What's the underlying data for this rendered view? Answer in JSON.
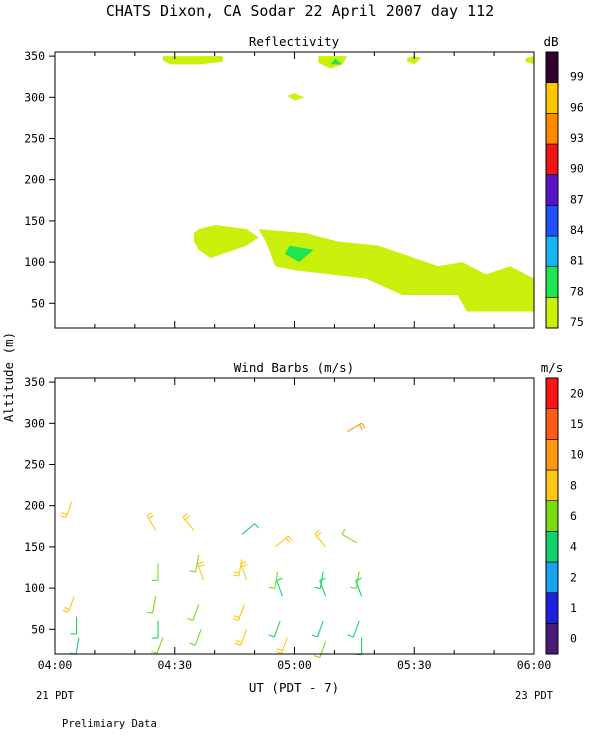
{
  "figure": {
    "title": "CHATS Dixon, CA  Sodar  22 April 2007  day 112",
    "left_date_label": "21 PDT",
    "right_date_label": "23 PDT",
    "footer_note": "Prelimiary Data",
    "colors": {
      "background": "#ffffff",
      "axes": "#000000"
    }
  },
  "chart_data": [
    {
      "type": "heatmap",
      "title": "Reflectivity",
      "colorbar_label": "dB",
      "xlabel": "",
      "ylabel": "",
      "x_ticks": [
        "04:00",
        "04:30",
        "05:00",
        "05:30",
        "06:00"
      ],
      "x_range_hours": [
        4.0,
        6.0
      ],
      "ylim": [
        20,
        355
      ],
      "y_ticks": [
        50,
        100,
        150,
        200,
        250,
        300,
        350
      ],
      "colorbar": {
        "levels": [
          "75",
          "78",
          "81",
          "84",
          "87",
          "90",
          "93",
          "96",
          "99"
        ],
        "colors": [
          "#c8f00a",
          "#1ee650",
          "#14b4f0",
          "#1e50ff",
          "#5a14c8",
          "#f01414",
          "#ff8c00",
          "#ffc800",
          "#32002a"
        ]
      },
      "regions": [
        {
          "level": "75",
          "points": [
            [
              4.45,
              350
            ],
            [
              4.7,
              350
            ],
            [
              4.7,
              343
            ],
            [
              4.6,
              340
            ],
            [
              4.48,
              340
            ],
            [
              4.45,
              345
            ]
          ]
        },
        {
          "level": "75",
          "points": [
            [
              5.1,
              350
            ],
            [
              5.22,
              350
            ],
            [
              5.2,
              340
            ],
            [
              5.15,
              335
            ],
            [
              5.1,
              342
            ]
          ]
        },
        {
          "level": "78",
          "points": [
            [
              5.17,
              347
            ],
            [
              5.2,
              340
            ],
            [
              5.15,
              340
            ]
          ]
        },
        {
          "level": "75",
          "points": [
            [
              5.47,
              348
            ],
            [
              5.5,
              350
            ],
            [
              5.53,
              348
            ],
            [
              5.5,
              340
            ],
            [
              5.47,
              344
            ]
          ]
        },
        {
          "level": "75",
          "points": [
            [
              5.97,
              348
            ],
            [
              6.0,
              350
            ],
            [
              6.03,
              348
            ],
            [
              6.0,
              340
            ],
            [
              5.96,
              344
            ]
          ]
        },
        {
          "level": "75",
          "points": [
            [
              4.97,
              302
            ],
            [
              5.0,
              305
            ],
            [
              5.04,
              300
            ],
            [
              5.0,
              296
            ]
          ]
        },
        {
          "level": "75",
          "points": [
            [
              4.58,
              135
            ],
            [
              4.6,
              140
            ],
            [
              4.67,
              145
            ],
            [
              4.8,
              140
            ],
            [
              4.85,
              130
            ],
            [
              4.8,
              120
            ],
            [
              4.7,
              110
            ],
            [
              4.65,
              105
            ],
            [
              4.6,
              115
            ],
            [
              4.58,
              125
            ]
          ]
        },
        {
          "level": "75",
          "points": [
            [
              4.85,
              140
            ],
            [
              5.05,
              135
            ],
            [
              5.18,
              125
            ],
            [
              5.35,
              120
            ],
            [
              5.5,
              105
            ],
            [
              5.6,
              95
            ],
            [
              5.7,
              100
            ],
            [
              5.8,
              85
            ],
            [
              5.9,
              95
            ],
            [
              6.0,
              80
            ],
            [
              6.0,
              40
            ],
            [
              5.72,
              40
            ],
            [
              5.68,
              60
            ],
            [
              5.45,
              60
            ],
            [
              5.3,
              80
            ],
            [
              5.15,
              85
            ],
            [
              5.0,
              90
            ],
            [
              4.92,
              95
            ],
            [
              4.9,
              110
            ],
            [
              4.88,
              125
            ]
          ]
        },
        {
          "level": "78",
          "points": [
            [
              4.98,
              120
            ],
            [
              5.08,
              115
            ],
            [
              5.02,
              100
            ],
            [
              4.96,
              110
            ]
          ]
        }
      ]
    },
    {
      "type": "scatter",
      "title": "Wind Barbs (m/s)",
      "colorbar_label": "m/s",
      "xlabel": "UT  (PDT - 7)",
      "ylabel": "Altitude (m)",
      "x_ticks": [
        "04:00",
        "04:30",
        "05:00",
        "05:30",
        "06:00"
      ],
      "x_range_hours": [
        4.0,
        6.0
      ],
      "ylim": [
        20,
        355
      ],
      "y_ticks": [
        50,
        100,
        150,
        200,
        250,
        300,
        350
      ],
      "colorbar": {
        "levels": [
          "0",
          "1",
          "2",
          "4",
          "6",
          "8",
          "10",
          "15",
          "20"
        ],
        "colors": [
          "#4a1a78",
          "#2020e0",
          "#19a3f0",
          "#14d26e",
          "#78dc14",
          "#ffc814",
          "#ff9614",
          "#ff5a14",
          "#ff1414"
        ]
      },
      "barbs": [
        {
          "time": 4.07,
          "altitude": 205,
          "speed": 8.5,
          "direction": 200
        },
        {
          "time": 4.08,
          "altitude": 90,
          "speed": 8,
          "direction": 200
        },
        {
          "time": 4.09,
          "altitude": 65,
          "speed": 5,
          "direction": 180
        },
        {
          "time": 4.1,
          "altitude": 40,
          "speed": 5,
          "direction": 190
        },
        {
          "time": 4.42,
          "altitude": 170,
          "speed": 9,
          "direction": 330
        },
        {
          "time": 4.43,
          "altitude": 130,
          "speed": 6,
          "direction": 180
        },
        {
          "time": 4.42,
          "altitude": 90,
          "speed": 6,
          "direction": 190
        },
        {
          "time": 4.43,
          "altitude": 60,
          "speed": 4,
          "direction": 180
        },
        {
          "time": 4.45,
          "altitude": 40,
          "speed": 7,
          "direction": 200
        },
        {
          "time": 4.58,
          "altitude": 170,
          "speed": 9,
          "direction": 320
        },
        {
          "time": 4.6,
          "altitude": 140,
          "speed": 7,
          "direction": 190
        },
        {
          "time": 4.62,
          "altitude": 110,
          "speed": 8,
          "direction": 340
        },
        {
          "time": 4.6,
          "altitude": 80,
          "speed": 7,
          "direction": 200
        },
        {
          "time": 4.61,
          "altitude": 50,
          "speed": 7,
          "direction": 200
        },
        {
          "time": 4.78,
          "altitude": 165,
          "speed": 4,
          "direction": 50
        },
        {
          "time": 4.78,
          "altitude": 135,
          "speed": 8,
          "direction": 190
        },
        {
          "time": 4.8,
          "altitude": 110,
          "speed": 9,
          "direction": 340
        },
        {
          "time": 4.79,
          "altitude": 80,
          "speed": 8,
          "direction": 200
        },
        {
          "time": 4.8,
          "altitude": 50,
          "speed": 9,
          "direction": 200
        },
        {
          "time": 4.92,
          "altitude": 150,
          "speed": 9,
          "direction": 50
        },
        {
          "time": 4.93,
          "altitude": 120,
          "speed": 6,
          "direction": 190
        },
        {
          "time": 4.95,
          "altitude": 90,
          "speed": 5,
          "direction": 340
        },
        {
          "time": 4.94,
          "altitude": 60,
          "speed": 5,
          "direction": 200
        },
        {
          "time": 4.97,
          "altitude": 40,
          "speed": 9,
          "direction": 200
        },
        {
          "time": 5.13,
          "altitude": 150,
          "speed": 9,
          "direction": 320
        },
        {
          "time": 5.12,
          "altitude": 120,
          "speed": 5,
          "direction": 190
        },
        {
          "time": 5.13,
          "altitude": 90,
          "speed": 5,
          "direction": 340
        },
        {
          "time": 5.12,
          "altitude": 60,
          "speed": 5,
          "direction": 200
        },
        {
          "time": 5.13,
          "altitude": 35,
          "speed": 6,
          "direction": 200
        },
        {
          "time": 5.22,
          "altitude": 290,
          "speed": 12,
          "direction": 60
        },
        {
          "time": 5.26,
          "altitude": 155,
          "speed": 7,
          "direction": 300
        },
        {
          "time": 5.27,
          "altitude": 120,
          "speed": 6,
          "direction": 190
        },
        {
          "time": 5.28,
          "altitude": 90,
          "speed": 5,
          "direction": 340
        },
        {
          "time": 5.27,
          "altitude": 60,
          "speed": 5,
          "direction": 200
        },
        {
          "time": 5.28,
          "altitude": 40,
          "speed": 4,
          "direction": 180
        }
      ]
    }
  ]
}
